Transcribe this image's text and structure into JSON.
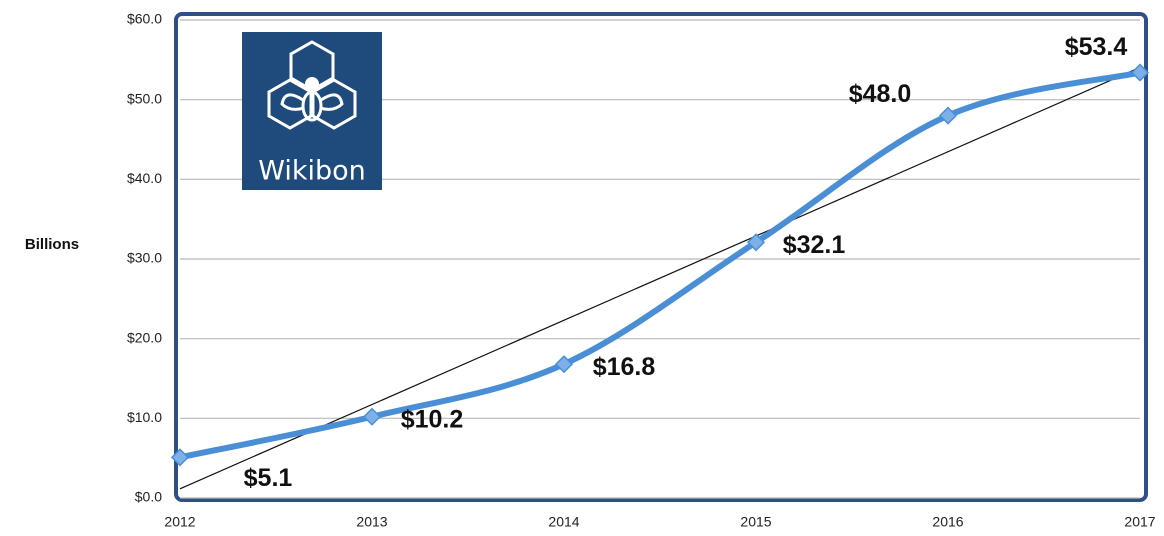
{
  "chart_data": {
    "type": "line",
    "y_label": "Billions",
    "logo": "Wikibon",
    "categories": [
      "2012",
      "2013",
      "2014",
      "2015",
      "2016",
      "2017"
    ],
    "values": [
      5.1,
      10.2,
      16.8,
      32.1,
      48.0,
      53.4
    ],
    "value_labels": [
      "$5.1",
      "$10.2",
      "$16.8",
      "$32.1",
      "$48.0",
      "$53.4"
    ],
    "color": "#4a8fd6",
    "trendline": true,
    "ylim": [
      0,
      60
    ],
    "yticks": [
      {
        "value": 0,
        "label": "$0.0"
      },
      {
        "value": 10,
        "label": "$10.0"
      },
      {
        "value": 20,
        "label": "$20.0"
      },
      {
        "value": 30,
        "label": "$30.0"
      },
      {
        "value": 40,
        "label": "$40.0"
      },
      {
        "value": 50,
        "label": "$50.0"
      },
      {
        "value": 60,
        "label": "$60.0"
      }
    ],
    "grid": true
  }
}
